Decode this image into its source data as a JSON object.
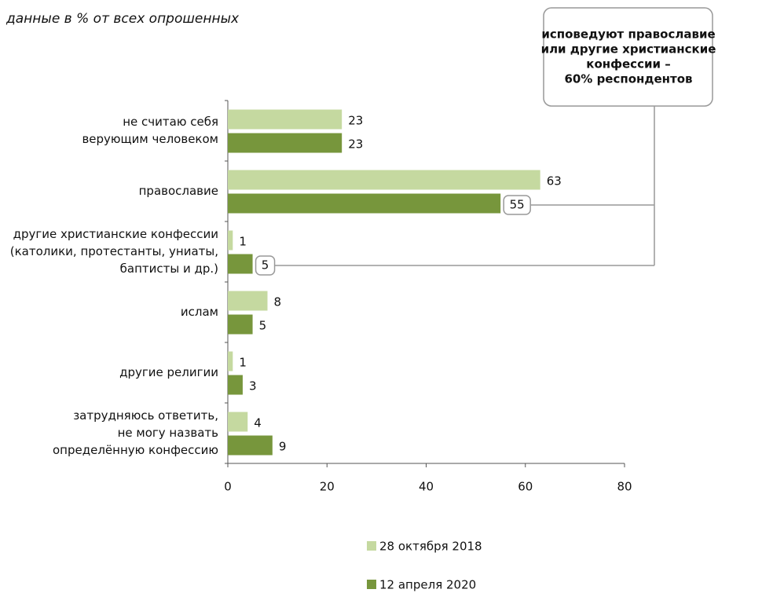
{
  "chart_data": {
    "type": "hbar",
    "subtitle": "данные в % от всех опрошенных",
    "categories": [
      [
        "не считаю себя",
        "верующим человеком"
      ],
      [
        "православие"
      ],
      [
        "другие христианские конфессии",
        "(католики, протестанты, униаты,",
        "баптисты и др.)"
      ],
      [
        "ислам"
      ],
      [
        "другие религии"
      ],
      [
        "затрудняюсь ответить,",
        "не могу назвать",
        "определённую конфессию"
      ]
    ],
    "series": [
      {
        "name": "28 октября 2018",
        "color": "#c5d9a0",
        "values": [
          23,
          63,
          1,
          8,
          1,
          4
        ]
      },
      {
        "name": "12 апреля 2020",
        "color": "#77963c",
        "values": [
          23,
          55,
          5,
          5,
          3,
          9
        ]
      }
    ],
    "xlim": [
      0,
      80
    ],
    "xticks": [
      0,
      20,
      40,
      60,
      80
    ],
    "annotation": [
      "исповедуют православие",
      "или другие христианские",
      "конфессии –",
      "60% респондентов"
    ]
  }
}
